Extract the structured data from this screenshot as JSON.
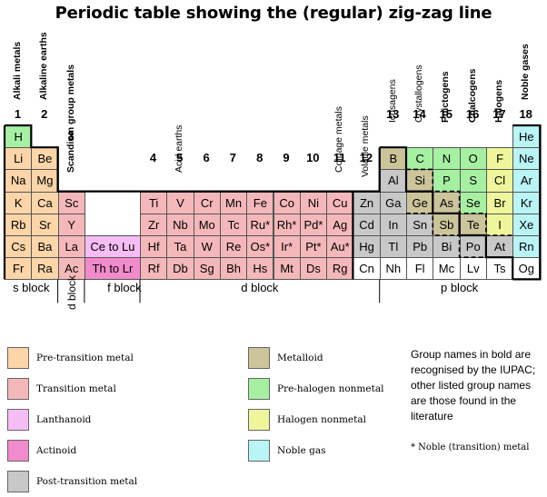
{
  "title": "Periodic table showing the (regular) zig-zag line",
  "colors": {
    "pre-transition": "#fcd5a8",
    "transition": "#f5b8ba",
    "lanthanoid": "#f6bdf4",
    "actinoid": "#f18bcb",
    "post-transition": "#c8c8c8",
    "metalloid": "#ccc49a",
    "prehalogen": "#a6f0a2",
    "halogen": "#eef59a",
    "noble": "#b9f4f6",
    "none": "#ffffff"
  },
  "group_numbers": [
    {
      "label": "1",
      "col": 1
    },
    {
      "label": "2",
      "col": 2
    },
    {
      "label": "3",
      "col": 3,
      "row": 2
    },
    {
      "label": "4",
      "col": 5,
      "row": 3
    },
    {
      "label": "5",
      "col": 6,
      "row": 3
    },
    {
      "label": "6",
      "col": 7,
      "row": 3
    },
    {
      "label": "7",
      "col": 8,
      "row": 3
    },
    {
      "label": "8",
      "col": 9,
      "row": 3
    },
    {
      "label": "9",
      "col": 10,
      "row": 3
    },
    {
      "label": "10",
      "col": 11,
      "row": 3
    },
    {
      "label": "11",
      "col": 12,
      "row": 3
    },
    {
      "label": "12",
      "col": 13,
      "row": 3
    },
    {
      "label": "13",
      "col": 14
    },
    {
      "label": "14",
      "col": 15
    },
    {
      "label": "15",
      "col": 16
    },
    {
      "label": "16",
      "col": 17
    },
    {
      "label": "17",
      "col": 18
    },
    {
      "label": "18",
      "col": 19
    }
  ],
  "group_names": [
    {
      "label": "Alkali metals",
      "col": 1,
      "bold": true
    },
    {
      "label": "Alkaline earths",
      "col": 2,
      "bold": true
    },
    {
      "label": "Scandium group metals",
      "col": 3,
      "bold": true
    },
    {
      "label": "Acid earths",
      "col": 6,
      "bold": false
    },
    {
      "label": "Coinage metals",
      "col": 12,
      "bold": false
    },
    {
      "label": "Volatile metals",
      "col": 13,
      "bold": false
    },
    {
      "label": "Icosagens",
      "col": 14,
      "bold": false
    },
    {
      "label": "Crystallogens",
      "col": 15,
      "bold": false
    },
    {
      "label": "Pnictogens",
      "col": 16,
      "bold": true
    },
    {
      "label": "Chalcogens",
      "col": 17,
      "bold": true
    },
    {
      "label": "Halogens",
      "col": 18,
      "bold": true
    },
    {
      "label": "Noble gases",
      "col": 19,
      "bold": true
    }
  ],
  "elements": [
    {
      "s": "H",
      "c": 1,
      "r": 1,
      "t": "prehalogen"
    },
    {
      "s": "He",
      "c": 19,
      "r": 1,
      "t": "noble"
    },
    {
      "s": "Li",
      "c": 1,
      "r": 2,
      "t": "pre-transition"
    },
    {
      "s": "Be",
      "c": 2,
      "r": 2,
      "t": "pre-transition"
    },
    {
      "s": "B",
      "c": 14,
      "r": 2,
      "t": "metalloid"
    },
    {
      "s": "C",
      "c": 15,
      "r": 2,
      "t": "prehalogen"
    },
    {
      "s": "N",
      "c": 16,
      "r": 2,
      "t": "prehalogen"
    },
    {
      "s": "O",
      "c": 17,
      "r": 2,
      "t": "prehalogen"
    },
    {
      "s": "F",
      "c": 18,
      "r": 2,
      "t": "halogen"
    },
    {
      "s": "Ne",
      "c": 19,
      "r": 2,
      "t": "noble"
    },
    {
      "s": "Na",
      "c": 1,
      "r": 3,
      "t": "pre-transition"
    },
    {
      "s": "Mg",
      "c": 2,
      "r": 3,
      "t": "pre-transition"
    },
    {
      "s": "Al",
      "c": 14,
      "r": 3,
      "t": "post-transition"
    },
    {
      "s": "Si",
      "c": 15,
      "r": 3,
      "t": "metalloid"
    },
    {
      "s": "P",
      "c": 16,
      "r": 3,
      "t": "prehalogen"
    },
    {
      "s": "S",
      "c": 17,
      "r": 3,
      "t": "prehalogen"
    },
    {
      "s": "Cl",
      "c": 18,
      "r": 3,
      "t": "halogen"
    },
    {
      "s": "Ar",
      "c": 19,
      "r": 3,
      "t": "noble"
    },
    {
      "s": "K",
      "c": 1,
      "r": 4,
      "t": "pre-transition"
    },
    {
      "s": "Ca",
      "c": 2,
      "r": 4,
      "t": "pre-transition"
    },
    {
      "s": "Sc",
      "c": 3,
      "r": 4,
      "t": "transition"
    },
    {
      "s": "Ti",
      "c": 5,
      "r": 4,
      "t": "transition"
    },
    {
      "s": "V",
      "c": 6,
      "r": 4,
      "t": "transition"
    },
    {
      "s": "Cr",
      "c": 7,
      "r": 4,
      "t": "transition"
    },
    {
      "s": "Mn",
      "c": 8,
      "r": 4,
      "t": "transition"
    },
    {
      "s": "Fe",
      "c": 9,
      "r": 4,
      "t": "transition"
    },
    {
      "s": "Co",
      "c": 10,
      "r": 4,
      "t": "transition"
    },
    {
      "s": "Ni",
      "c": 11,
      "r": 4,
      "t": "transition"
    },
    {
      "s": "Cu",
      "c": 12,
      "r": 4,
      "t": "transition"
    },
    {
      "s": "Zn",
      "c": 13,
      "r": 4,
      "t": "post-transition"
    },
    {
      "s": "Ga",
      "c": 14,
      "r": 4,
      "t": "post-transition"
    },
    {
      "s": "Ge",
      "c": 15,
      "r": 4,
      "t": "metalloid"
    },
    {
      "s": "As",
      "c": 16,
      "r": 4,
      "t": "metalloid"
    },
    {
      "s": "Se",
      "c": 17,
      "r": 4,
      "t": "prehalogen"
    },
    {
      "s": "Br",
      "c": 18,
      "r": 4,
      "t": "halogen"
    },
    {
      "s": "Kr",
      "c": 19,
      "r": 4,
      "t": "noble"
    },
    {
      "s": "Rb",
      "c": 1,
      "r": 5,
      "t": "pre-transition"
    },
    {
      "s": "Sr",
      "c": 2,
      "r": 5,
      "t": "pre-transition"
    },
    {
      "s": "Y",
      "c": 3,
      "r": 5,
      "t": "transition"
    },
    {
      "s": "Zr",
      "c": 5,
      "r": 5,
      "t": "transition"
    },
    {
      "s": "Nb",
      "c": 6,
      "r": 5,
      "t": "transition"
    },
    {
      "s": "Mo",
      "c": 7,
      "r": 5,
      "t": "transition"
    },
    {
      "s": "Tc",
      "c": 8,
      "r": 5,
      "t": "transition"
    },
    {
      "s": "Ru*",
      "c": 9,
      "r": 5,
      "t": "transition"
    },
    {
      "s": "Rh*",
      "c": 10,
      "r": 5,
      "t": "transition"
    },
    {
      "s": "Pd*",
      "c": 11,
      "r": 5,
      "t": "transition"
    },
    {
      "s": "Ag",
      "c": 12,
      "r": 5,
      "t": "transition"
    },
    {
      "s": "Cd",
      "c": 13,
      "r": 5,
      "t": "post-transition"
    },
    {
      "s": "In",
      "c": 14,
      "r": 5,
      "t": "post-transition"
    },
    {
      "s": "Sn",
      "c": 15,
      "r": 5,
      "t": "post-transition"
    },
    {
      "s": "Sb",
      "c": 16,
      "r": 5,
      "t": "metalloid"
    },
    {
      "s": "Te",
      "c": 17,
      "r": 5,
      "t": "metalloid"
    },
    {
      "s": "I",
      "c": 18,
      "r": 5,
      "t": "halogen"
    },
    {
      "s": "Xe",
      "c": 19,
      "r": 5,
      "t": "noble"
    },
    {
      "s": "Cs",
      "c": 1,
      "r": 6,
      "t": "pre-transition"
    },
    {
      "s": "Ba",
      "c": 2,
      "r": 6,
      "t": "pre-transition"
    },
    {
      "s": "La",
      "c": 3,
      "r": 6,
      "t": "transition"
    },
    {
      "s": "Hf",
      "c": 5,
      "r": 6,
      "t": "transition"
    },
    {
      "s": "Ta",
      "c": 6,
      "r": 6,
      "t": "transition"
    },
    {
      "s": "W",
      "c": 7,
      "r": 6,
      "t": "transition"
    },
    {
      "s": "Re",
      "c": 8,
      "r": 6,
      "t": "transition"
    },
    {
      "s": "Os*",
      "c": 9,
      "r": 6,
      "t": "transition"
    },
    {
      "s": "Ir*",
      "c": 10,
      "r": 6,
      "t": "transition"
    },
    {
      "s": "Pt*",
      "c": 11,
      "r": 6,
      "t": "transition"
    },
    {
      "s": "Au*",
      "c": 12,
      "r": 6,
      "t": "transition"
    },
    {
      "s": "Hg",
      "c": 13,
      "r": 6,
      "t": "post-transition"
    },
    {
      "s": "Tl",
      "c": 14,
      "r": 6,
      "t": "post-transition"
    },
    {
      "s": "Pb",
      "c": 15,
      "r": 6,
      "t": "post-transition"
    },
    {
      "s": "Bi",
      "c": 16,
      "r": 6,
      "t": "post-transition"
    },
    {
      "s": "Po",
      "c": 17,
      "r": 6,
      "t": "post-transition"
    },
    {
      "s": "At",
      "c": 18,
      "r": 6,
      "t": "post-transition"
    },
    {
      "s": "Rn",
      "c": 19,
      "r": 6,
      "t": "noble"
    },
    {
      "s": "Fr",
      "c": 1,
      "r": 7,
      "t": "pre-transition"
    },
    {
      "s": "Ra",
      "c": 2,
      "r": 7,
      "t": "pre-transition"
    },
    {
      "s": "Ac",
      "c": 3,
      "r": 7,
      "t": "transition"
    },
    {
      "s": "Rf",
      "c": 5,
      "r": 7,
      "t": "transition"
    },
    {
      "s": "Db",
      "c": 6,
      "r": 7,
      "t": "transition"
    },
    {
      "s": "Sg",
      "c": 7,
      "r": 7,
      "t": "transition"
    },
    {
      "s": "Bh",
      "c": 8,
      "r": 7,
      "t": "transition"
    },
    {
      "s": "Hs",
      "c": 9,
      "r": 7,
      "t": "transition"
    },
    {
      "s": "Mt",
      "c": 10,
      "r": 7,
      "t": "transition"
    },
    {
      "s": "Ds",
      "c": 11,
      "r": 7,
      "t": "transition"
    },
    {
      "s": "Rg",
      "c": 12,
      "r": 7,
      "t": "transition"
    },
    {
      "s": "Cn",
      "c": 13,
      "r": 7,
      "t": "none"
    },
    {
      "s": "Nh",
      "c": 14,
      "r": 7,
      "t": "none"
    },
    {
      "s": "Fl",
      "c": 15,
      "r": 7,
      "t": "none"
    },
    {
      "s": "Mc",
      "c": 16,
      "r": 7,
      "t": "none"
    },
    {
      "s": "Lv",
      "c": 17,
      "r": 7,
      "t": "none"
    },
    {
      "s": "Ts",
      "c": 18,
      "r": 7,
      "t": "none"
    },
    {
      "s": "Og",
      "c": 19,
      "r": 7,
      "t": "none"
    }
  ],
  "f_block": [
    {
      "s": "Ce to Lu",
      "r": 6,
      "t": "lanthanoid"
    },
    {
      "s": "Th to Lr",
      "r": 7,
      "t": "actinoid"
    }
  ],
  "blocks": {
    "s": "s block",
    "d_vertical": "d block",
    "f": "f block",
    "d": "d block",
    "p": "p block"
  },
  "legend": {
    "left": [
      {
        "t": "pre-transition",
        "label": "Pre-transition metal"
      },
      {
        "t": "transition",
        "label": "Transition metal"
      },
      {
        "t": "lanthanoid",
        "label": "Lanthanoid"
      },
      {
        "t": "actinoid",
        "label": "Actinoid"
      },
      {
        "t": "post-transition",
        "label": "Post-transition metal"
      }
    ],
    "right": [
      {
        "t": "metalloid",
        "label": "Metalloid"
      },
      {
        "t": "prehalogen",
        "label": "Pre-halogen nonmetal"
      },
      {
        "t": "halogen",
        "label": "Halogen nonmetal"
      },
      {
        "t": "noble",
        "label": "Noble gas"
      }
    ]
  },
  "note": "Group names in bold are recognised by the IUPAC; other listed group names are those found in the literature",
  "noble_note": "* Noble (transition) metal"
}
